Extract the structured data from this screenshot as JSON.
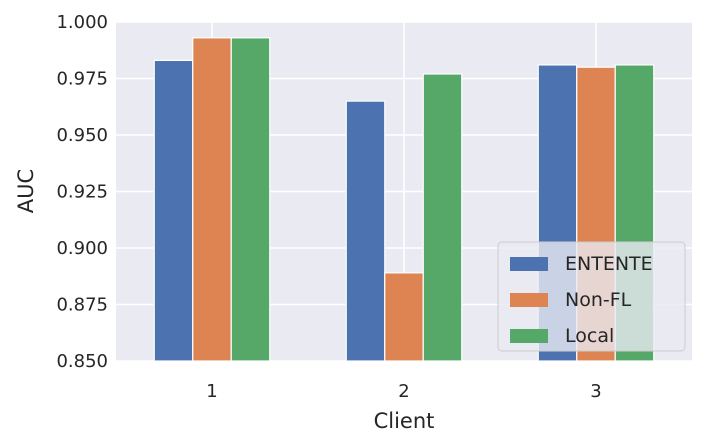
{
  "chart_data": {
    "type": "bar",
    "title": "",
    "xlabel": "Client",
    "ylabel": "AUC",
    "categories": [
      "1",
      "2",
      "3"
    ],
    "yticks": [
      "0.850",
      "0.875",
      "0.900",
      "0.925",
      "0.950",
      "0.975",
      "1.000"
    ],
    "ylim": [
      0.85,
      1.0
    ],
    "grid": true,
    "legend_position": "lower-right",
    "series": [
      {
        "name": "ENTENTE",
        "color": "#4c72b0",
        "values": [
          0.983,
          0.965,
          0.981
        ]
      },
      {
        "name": "Non-FL",
        "color": "#dd8452",
        "values": [
          0.993,
          0.889,
          0.98
        ]
      },
      {
        "name": "Local",
        "color": "#55a868",
        "values": [
          0.993,
          0.977,
          0.981
        ]
      }
    ]
  }
}
